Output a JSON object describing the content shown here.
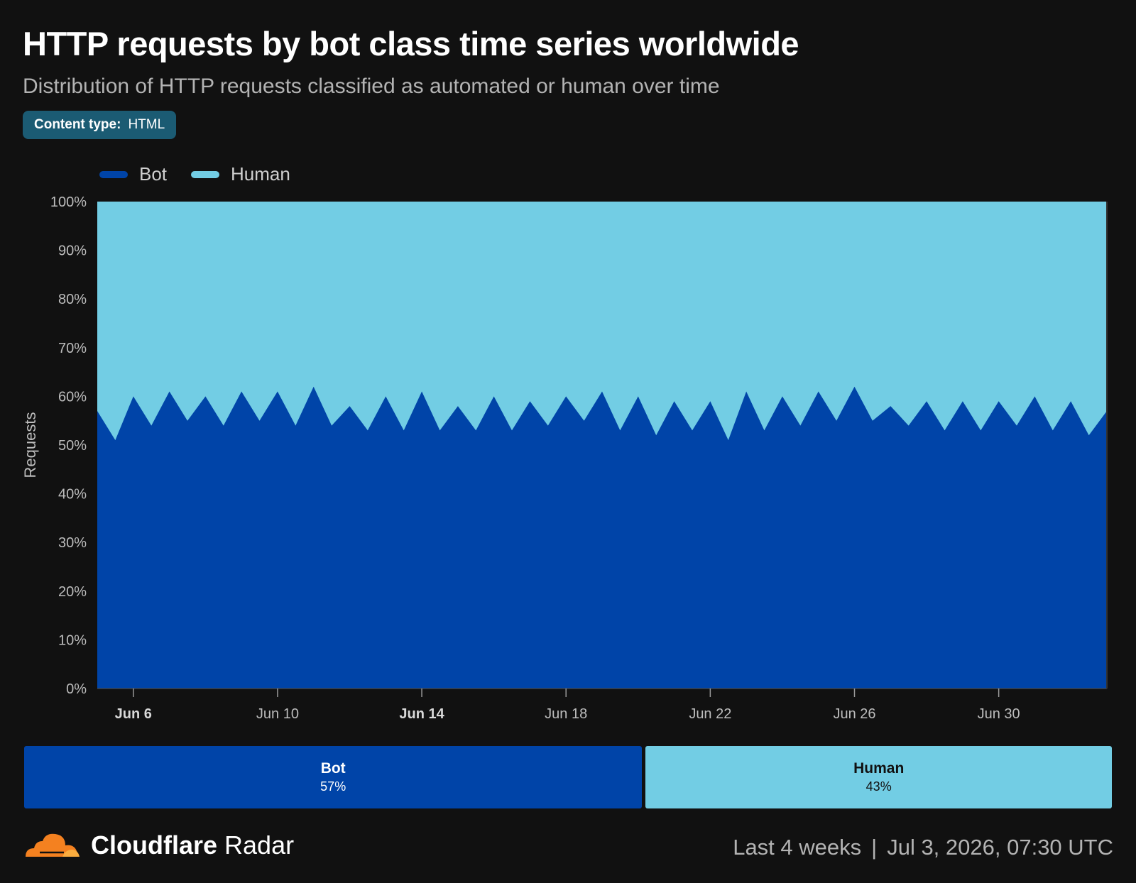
{
  "header": {
    "title": "HTTP requests by bot class time series worldwide",
    "subtitle": "Distribution of HTTP requests classified as automated or human over time",
    "filter_key": "Content type:",
    "filter_value": "HTML"
  },
  "colors": {
    "bot": "#0044a8",
    "human": "#72cde4",
    "background": "#111111"
  },
  "chart_data": {
    "type": "area",
    "stacked": true,
    "ylabel": "Requests",
    "ylim": [
      0,
      100
    ],
    "yticks": [
      "0%",
      "10%",
      "20%",
      "30%",
      "40%",
      "50%",
      "60%",
      "70%",
      "80%",
      "90%",
      "100%"
    ],
    "x_start": "2026-06-05",
    "x_end": "2026-07-03",
    "xticks": [
      {
        "label": "Jun 6",
        "date": "2026-06-06",
        "bold": true
      },
      {
        "label": "Jun 10",
        "date": "2026-06-10",
        "bold": false
      },
      {
        "label": "Jun 14",
        "date": "2026-06-14",
        "bold": true
      },
      {
        "label": "Jun 18",
        "date": "2026-06-18",
        "bold": false
      },
      {
        "label": "Jun 22",
        "date": "2026-06-22",
        "bold": false
      },
      {
        "label": "Jun 26",
        "date": "2026-06-26",
        "bold": false
      },
      {
        "label": "Jun 30",
        "date": "2026-06-30",
        "bold": false
      }
    ],
    "legend": "top-left",
    "grid": false,
    "x": [
      "2026-06-05 00:00",
      "2026-06-05 12:00",
      "2026-06-06 00:00",
      "2026-06-06 12:00",
      "2026-06-07 00:00",
      "2026-06-07 12:00",
      "2026-06-08 00:00",
      "2026-06-08 12:00",
      "2026-06-09 00:00",
      "2026-06-09 12:00",
      "2026-06-10 00:00",
      "2026-06-10 12:00",
      "2026-06-11 00:00",
      "2026-06-11 12:00",
      "2026-06-12 00:00",
      "2026-06-12 12:00",
      "2026-06-13 00:00",
      "2026-06-13 12:00",
      "2026-06-14 00:00",
      "2026-06-14 12:00",
      "2026-06-15 00:00",
      "2026-06-15 12:00",
      "2026-06-16 00:00",
      "2026-06-16 12:00",
      "2026-06-17 00:00",
      "2026-06-17 12:00",
      "2026-06-18 00:00",
      "2026-06-18 12:00",
      "2026-06-19 00:00",
      "2026-06-19 12:00",
      "2026-06-20 00:00",
      "2026-06-20 12:00",
      "2026-06-21 00:00",
      "2026-06-21 12:00",
      "2026-06-22 00:00",
      "2026-06-22 12:00",
      "2026-06-23 00:00",
      "2026-06-23 12:00",
      "2026-06-24 00:00",
      "2026-06-24 12:00",
      "2026-06-25 00:00",
      "2026-06-25 12:00",
      "2026-06-26 00:00",
      "2026-06-26 12:00",
      "2026-06-27 00:00",
      "2026-06-27 12:00",
      "2026-06-28 00:00",
      "2026-06-28 12:00",
      "2026-06-29 00:00",
      "2026-06-29 12:00",
      "2026-06-30 00:00",
      "2026-06-30 12:00",
      "2026-07-01 00:00",
      "2026-07-01 12:00",
      "2026-07-02 00:00",
      "2026-07-02 12:00",
      "2026-07-03 00:00"
    ],
    "series": [
      {
        "name": "Bot",
        "values": [
          57,
          51,
          60,
          54,
          61,
          55,
          60,
          54,
          61,
          55,
          61,
          54,
          62,
          54,
          58,
          53,
          60,
          53,
          61,
          53,
          58,
          53,
          60,
          53,
          59,
          54,
          60,
          55,
          61,
          53,
          60,
          52,
          59,
          53,
          59,
          51,
          61,
          53,
          60,
          54,
          61,
          55,
          62,
          55,
          58,
          54,
          59,
          53,
          59,
          53,
          59,
          54,
          60,
          53,
          59,
          52,
          57
        ]
      },
      {
        "name": "Human",
        "values": [
          43,
          49,
          40,
          46,
          39,
          45,
          40,
          46,
          39,
          45,
          39,
          46,
          38,
          46,
          42,
          47,
          40,
          47,
          39,
          47,
          42,
          47,
          40,
          47,
          41,
          46,
          40,
          45,
          39,
          47,
          40,
          48,
          41,
          47,
          41,
          49,
          39,
          47,
          40,
          46,
          39,
          45,
          38,
          45,
          42,
          46,
          41,
          47,
          41,
          47,
          41,
          46,
          40,
          47,
          41,
          48,
          43
        ]
      }
    ],
    "summary": [
      {
        "name": "Bot",
        "value": "57%",
        "share": 57
      },
      {
        "name": "Human",
        "value": "43%",
        "share": 43
      }
    ]
  },
  "footer": {
    "brand_bold": "Cloudflare",
    "brand_light": "Radar",
    "period": "Last 4 weeks",
    "separator": "|",
    "timestamp": "Jul 3, 2026, 07:30 UTC"
  }
}
